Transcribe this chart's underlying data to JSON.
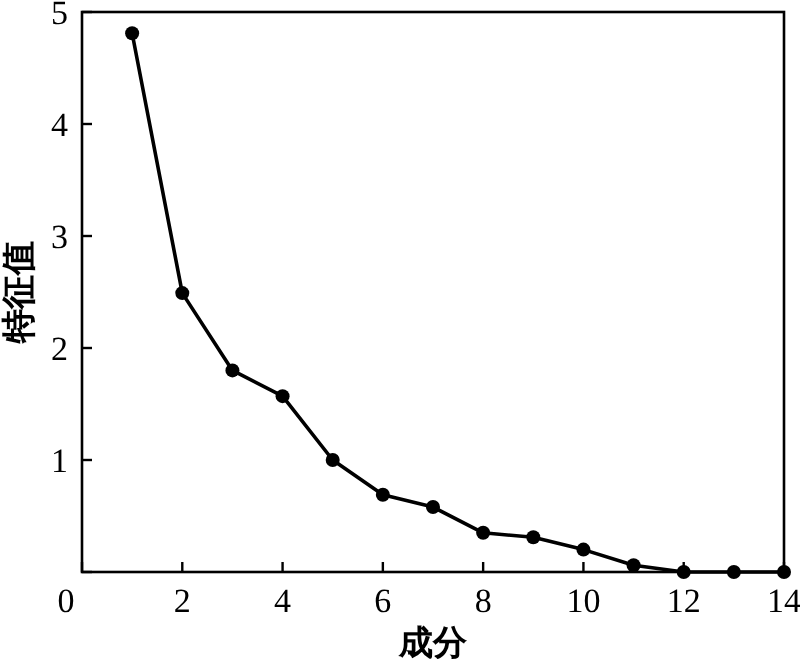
{
  "chart_data": {
    "type": "line",
    "xlabel": "成分",
    "ylabel": "特征值",
    "marker": "circle",
    "line_style": "solid",
    "color": "#000000",
    "x": [
      1,
      2,
      3,
      4,
      5,
      6,
      7,
      8,
      9,
      10,
      11,
      12,
      13,
      14
    ],
    "values": [
      4.81,
      2.49,
      1.8,
      1.57,
      1.0,
      0.69,
      0.58,
      0.35,
      0.31,
      0.2,
      0.06,
      0.0,
      0.0,
      0.0
    ],
    "xlim": [
      0,
      14
    ],
    "ylim": [
      0,
      5
    ],
    "xticks": [
      0,
      2,
      4,
      6,
      8,
      10,
      12,
      14
    ],
    "yticks": [
      {
        "value": 0,
        "label": null
      },
      1,
      2,
      3,
      4,
      5
    ]
  }
}
